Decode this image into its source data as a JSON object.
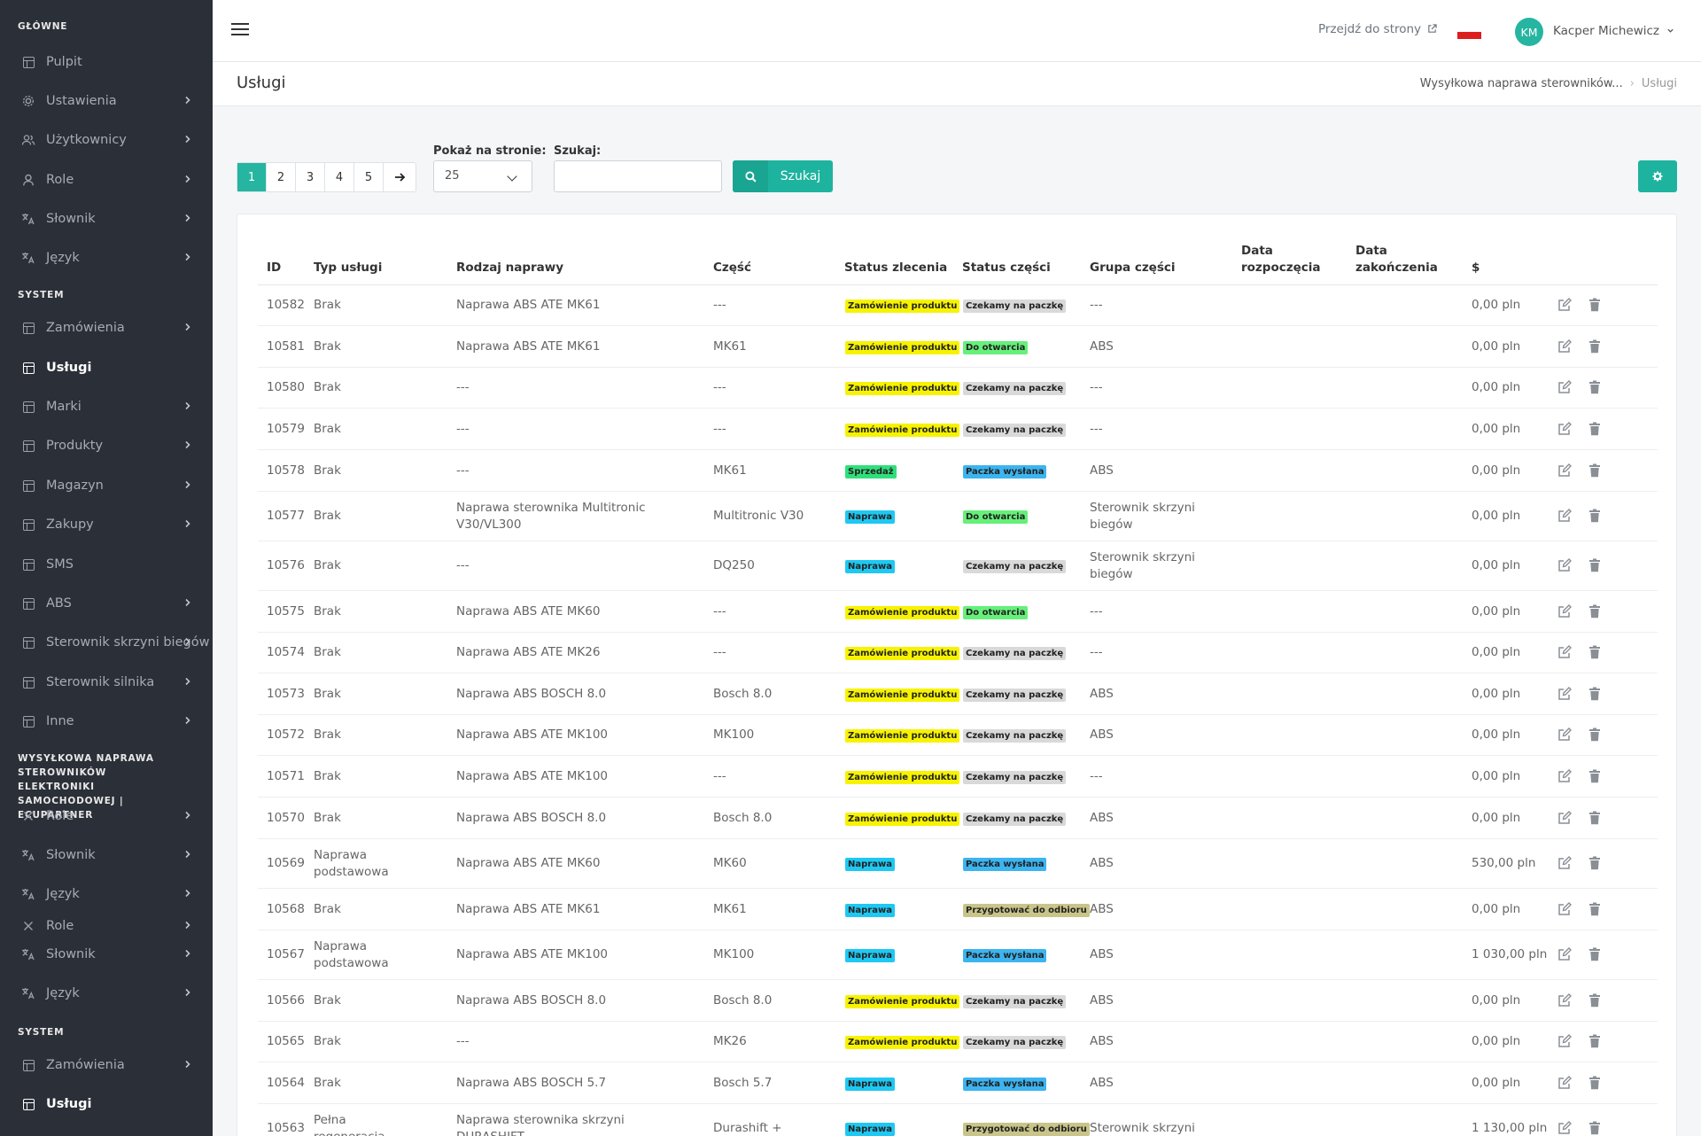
{
  "sidebar": {
    "sections": [
      {
        "title": "GŁÓWNE"
      },
      {
        "title": "SYSTEM"
      },
      {
        "title": "WYSYŁKOWA NAPRAWA STEROWNIKÓW ELEKTRONIKI SAMOCHODOWEJ | ECUPARTNER"
      },
      {
        "title": "SYSTEM"
      }
    ],
    "items": [
      {
        "label": "Pulpit",
        "icon": "table-icon",
        "chevron": false
      },
      {
        "label": "Ustawienia",
        "icon": "gear-icon",
        "chevron": true
      },
      {
        "label": "Użytkownicy",
        "icon": "users-icon",
        "chevron": true
      },
      {
        "label": "Role",
        "icon": "user-icon",
        "chevron": true
      },
      {
        "label": "Słownik",
        "icon": "translate-icon",
        "chevron": true
      },
      {
        "label": "Język",
        "icon": "language-icon",
        "chevron": true
      },
      {
        "label": "Zamówienia",
        "icon": "table-icon",
        "chevron": true
      },
      {
        "label": "Usługi",
        "icon": "table-icon",
        "chevron": false,
        "active": true
      },
      {
        "label": "Marki",
        "icon": "table-icon",
        "chevron": true
      },
      {
        "label": "Produkty",
        "icon": "table-icon",
        "chevron": true
      },
      {
        "label": "Magazyn",
        "icon": "table-icon",
        "chevron": true
      },
      {
        "label": "Zakupy",
        "icon": "table-icon",
        "chevron": true
      },
      {
        "label": "SMS",
        "icon": "table-icon",
        "chevron": false
      },
      {
        "label": "ABS",
        "icon": "table-icon",
        "chevron": true
      },
      {
        "label": "Sterownik skrzyni biegów",
        "icon": "table-icon",
        "chevron": true
      },
      {
        "label": "Sterownik silnika",
        "icon": "table-icon",
        "chevron": true
      },
      {
        "label": "Inne",
        "icon": "table-icon",
        "chevron": true
      },
      {
        "label": "Role",
        "icon": "x-icon",
        "chevron": true
      },
      {
        "label": "Słownik",
        "icon": "translate-icon",
        "chevron": true
      },
      {
        "label": "Język",
        "icon": "language-icon",
        "chevron": true
      },
      {
        "label": "Role",
        "icon": "x-icon",
        "chevron": true
      },
      {
        "label": "Słownik",
        "icon": "translate-icon",
        "chevron": true
      },
      {
        "label": "Język",
        "icon": "language-icon",
        "chevron": true
      },
      {
        "label": "Zamówienia",
        "icon": "table-icon",
        "chevron": true
      },
      {
        "label": "Usługi",
        "icon": "table-icon",
        "chevron": false,
        "active": true
      }
    ]
  },
  "topbar": {
    "goto_label": "Przejdź do strony",
    "user_initials": "KM",
    "user_name": "Kacper Michewicz"
  },
  "page": {
    "title": "Usługi",
    "breadcrumb": [
      "Wysyłkowa naprawa sterowników...",
      "Usługi"
    ]
  },
  "controls": {
    "pages": [
      "1",
      "2",
      "3",
      "4",
      "5"
    ],
    "active_page": "1",
    "per_page_label": "Pokaż na stronie:",
    "per_page_value": "25",
    "search_label": "Szukaj:",
    "search_value": "",
    "search_button": "Szukaj"
  },
  "table": {
    "headers": {
      "id": "ID",
      "type": "Typ usługi",
      "repair": "Rodzaj naprawy",
      "part": "Część",
      "order_status": "Status zlecenia",
      "part_status": "Status części",
      "group": "Grupa części",
      "start": "Data rozpoczęcia",
      "end": "Data zakończenia",
      "price": "$"
    },
    "badge_colors": {
      "Zamówienie produktu": "#f7f300",
      "Sprzedaż": "#2fe07a",
      "Naprawa": "#1ec8f2",
      "Czekamy na paczkę": "#d9d9d9",
      "Do otwarcia": "#66f07a",
      "Paczka wysłana": "#3cb4f0",
      "Przygotować do odbioru": "#c9c58a"
    },
    "rows": [
      {
        "id": "10582",
        "type": "Brak",
        "repair": "Naprawa ABS ATE MK61",
        "part": "---",
        "order_status": "Zamówienie produktu",
        "part_status": "Czekamy na paczkę",
        "group": "---",
        "price": "0,00 pln"
      },
      {
        "id": "10581",
        "type": "Brak",
        "repair": "Naprawa ABS ATE MK61",
        "part": "MK61",
        "order_status": "Zamówienie produktu",
        "part_status": "Do otwarcia",
        "group": "ABS",
        "price": "0,00 pln"
      },
      {
        "id": "10580",
        "type": "Brak",
        "repair": "---",
        "part": "---",
        "order_status": "Zamówienie produktu",
        "part_status": "Czekamy na paczkę",
        "group": "---",
        "price": "0,00 pln"
      },
      {
        "id": "10579",
        "type": "Brak",
        "repair": "---",
        "part": "---",
        "order_status": "Zamówienie produktu",
        "part_status": "Czekamy na paczkę",
        "group": "---",
        "price": "0,00 pln"
      },
      {
        "id": "10578",
        "type": "Brak",
        "repair": "---",
        "part": "MK61",
        "order_status": "Sprzedaż",
        "part_status": "Paczka wysłana",
        "group": "ABS",
        "price": "0,00 pln"
      },
      {
        "id": "10577",
        "type": "Brak",
        "repair": "Naprawa sterownika Multitronic V30/VL300",
        "part": "Multitronic V30",
        "order_status": "Naprawa",
        "part_status": "Do otwarcia",
        "group": "Sterownik skrzyni biegów",
        "price": "0,00 pln"
      },
      {
        "id": "10576",
        "type": "Brak",
        "repair": "---",
        "part": "DQ250",
        "order_status": "Naprawa",
        "part_status": "Czekamy na paczkę",
        "group": "Sterownik skrzyni biegów",
        "price": "0,00 pln"
      },
      {
        "id": "10575",
        "type": "Brak",
        "repair": "Naprawa ABS ATE MK60",
        "part": "---",
        "order_status": "Zamówienie produktu",
        "part_status": "Do otwarcia",
        "group": "---",
        "price": "0,00 pln"
      },
      {
        "id": "10574",
        "type": "Brak",
        "repair": "Naprawa ABS ATE MK26",
        "part": "---",
        "order_status": "Zamówienie produktu",
        "part_status": "Czekamy na paczkę",
        "group": "---",
        "price": "0,00 pln"
      },
      {
        "id": "10573",
        "type": "Brak",
        "repair": "Naprawa ABS BOSCH 8.0",
        "part": "Bosch 8.0",
        "order_status": "Zamówienie produktu",
        "part_status": "Czekamy na paczkę",
        "group": "ABS",
        "price": "0,00 pln"
      },
      {
        "id": "10572",
        "type": "Brak",
        "repair": "Naprawa ABS ATE MK100",
        "part": "MK100",
        "order_status": "Zamówienie produktu",
        "part_status": "Czekamy na paczkę",
        "group": "ABS",
        "price": "0,00 pln"
      },
      {
        "id": "10571",
        "type": "Brak",
        "repair": "Naprawa ABS ATE MK100",
        "part": "---",
        "order_status": "Zamówienie produktu",
        "part_status": "Czekamy na paczkę",
        "group": "---",
        "price": "0,00 pln"
      },
      {
        "id": "10570",
        "type": "Brak",
        "repair": "Naprawa ABS BOSCH 8.0",
        "part": "Bosch 8.0",
        "order_status": "Zamówienie produktu",
        "part_status": "Czekamy na paczkę",
        "group": "ABS",
        "price": "0,00 pln"
      },
      {
        "id": "10569",
        "type": "Naprawa podstawowa",
        "repair": "Naprawa ABS ATE MK60",
        "part": "MK60",
        "order_status": "Naprawa",
        "part_status": "Paczka wysłana",
        "group": "ABS",
        "price": "530,00 pln"
      },
      {
        "id": "10568",
        "type": "Brak",
        "repair": "Naprawa ABS ATE MK61",
        "part": "MK61",
        "order_status": "Naprawa",
        "part_status": "Przygotować do odbioru",
        "group": "ABS",
        "price": "0,00 pln"
      },
      {
        "id": "10567",
        "type": "Naprawa podstawowa",
        "repair": "Naprawa ABS ATE MK100",
        "part": "MK100",
        "order_status": "Naprawa",
        "part_status": "Paczka wysłana",
        "group": "ABS",
        "price": "1 030,00 pln"
      },
      {
        "id": "10566",
        "type": "Brak",
        "repair": "Naprawa ABS BOSCH 8.0",
        "part": "Bosch 8.0",
        "order_status": "Zamówienie produktu",
        "part_status": "Czekamy na paczkę",
        "group": "ABS",
        "price": "0,00 pln"
      },
      {
        "id": "10565",
        "type": "Brak",
        "repair": "---",
        "part": "MK26",
        "order_status": "Zamówienie produktu",
        "part_status": "Czekamy na paczkę",
        "group": "ABS",
        "price": "0,00 pln"
      },
      {
        "id": "10564",
        "type": "Brak",
        "repair": "Naprawa ABS BOSCH 5.7",
        "part": "Bosch 5.7",
        "order_status": "Naprawa",
        "part_status": "Paczka wysłana",
        "group": "ABS",
        "price": "0,00 pln"
      },
      {
        "id": "10563",
        "type": "Pełna regeneracja",
        "repair": "Naprawa sterownika skrzyni DURASHIFT",
        "part": "Durashift +",
        "order_status": "Naprawa",
        "part_status": "Przygotować do odbioru",
        "group": "Sterownik skrzyni",
        "price": "1 130,00 pln"
      }
    ]
  }
}
